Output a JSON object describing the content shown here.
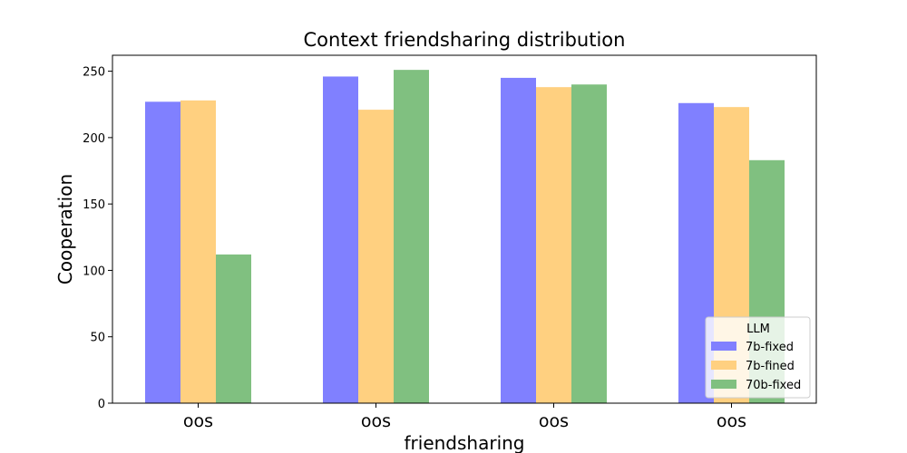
{
  "chart_data": {
    "type": "bar",
    "title": "Context friendsharing distribution",
    "xlabel": "friendsharing",
    "ylabel": "Cooperation",
    "categories": [
      "oos",
      "oos",
      "oos",
      "oos"
    ],
    "ylim": [
      0,
      262
    ],
    "yticks": [
      0,
      50,
      100,
      150,
      200,
      250
    ],
    "grid": false,
    "legend": {
      "title": "LLM",
      "placement": "bottom-right"
    },
    "series": [
      {
        "name": "7b-fixed",
        "color": "#8080ff",
        "values": [
          227,
          246,
          245,
          226
        ]
      },
      {
        "name": "7b-fined",
        "color": "#ffd080",
        "values": [
          228,
          221,
          238,
          223
        ]
      },
      {
        "name": "70b-fixed",
        "color": "#80c080",
        "values": [
          112,
          251,
          240,
          183
        ]
      }
    ]
  }
}
